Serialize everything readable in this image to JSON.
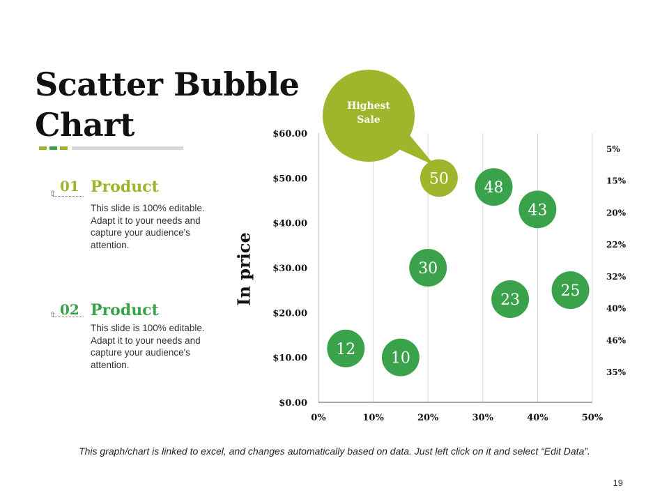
{
  "slide": {
    "title_line1": "Scatter Bubble",
    "title_line2": "Chart",
    "page_number": "19",
    "footer_note": "This graph/chart is linked to excel, and changes automatically based on data. Just left click on it and select “Edit Data”."
  },
  "colors": {
    "accent_lime": "#a0b52b",
    "accent_green": "#3aa24a",
    "grid": "#d9d9d9",
    "bar_gray": "#d9d9d9"
  },
  "products": [
    {
      "number": "01",
      "title": "Product",
      "description": "This slide is 100% editable. Adapt it to your needs and capture your audience's attention."
    },
    {
      "number": "02",
      "title": "Product",
      "description": "This slide is 100% editable. Adapt it to your needs and capture your audience's attention."
    }
  ],
  "callout": {
    "line1": "Highest",
    "line2": "Sale"
  },
  "chart_data": {
    "type": "scatter",
    "title": "",
    "xlabel": "",
    "ylabel": "In price",
    "xlim": [
      0,
      50
    ],
    "ylim": [
      0,
      60
    ],
    "x_tick_labels": [
      "0%",
      "10%",
      "20%",
      "30%",
      "40%",
      "50%"
    ],
    "y_tick_labels": [
      "$0.00",
      "$10.00",
      "$20.00",
      "$30.00",
      "$40.00",
      "$50.00",
      "$60.00"
    ],
    "right_labels": [
      "5%",
      "15%",
      "20%",
      "22%",
      "32%",
      "40%",
      "46%",
      "35%"
    ],
    "points": [
      {
        "x": 5,
        "y": 12,
        "label": "12",
        "color": "#3aa24a"
      },
      {
        "x": 15,
        "y": 10,
        "label": "10",
        "color": "#3aa24a"
      },
      {
        "x": 20,
        "y": 30,
        "label": "30",
        "color": "#3aa24a"
      },
      {
        "x": 22,
        "y": 50,
        "label": "50",
        "color": "#a0b52b"
      },
      {
        "x": 32,
        "y": 48,
        "label": "48",
        "color": "#3aa24a"
      },
      {
        "x": 35,
        "y": 23,
        "label": "23",
        "color": "#3aa24a"
      },
      {
        "x": 40,
        "y": 43,
        "label": "43",
        "color": "#3aa24a"
      },
      {
        "x": 46,
        "y": 25,
        "label": "25",
        "color": "#3aa24a"
      }
    ],
    "grid": true
  }
}
